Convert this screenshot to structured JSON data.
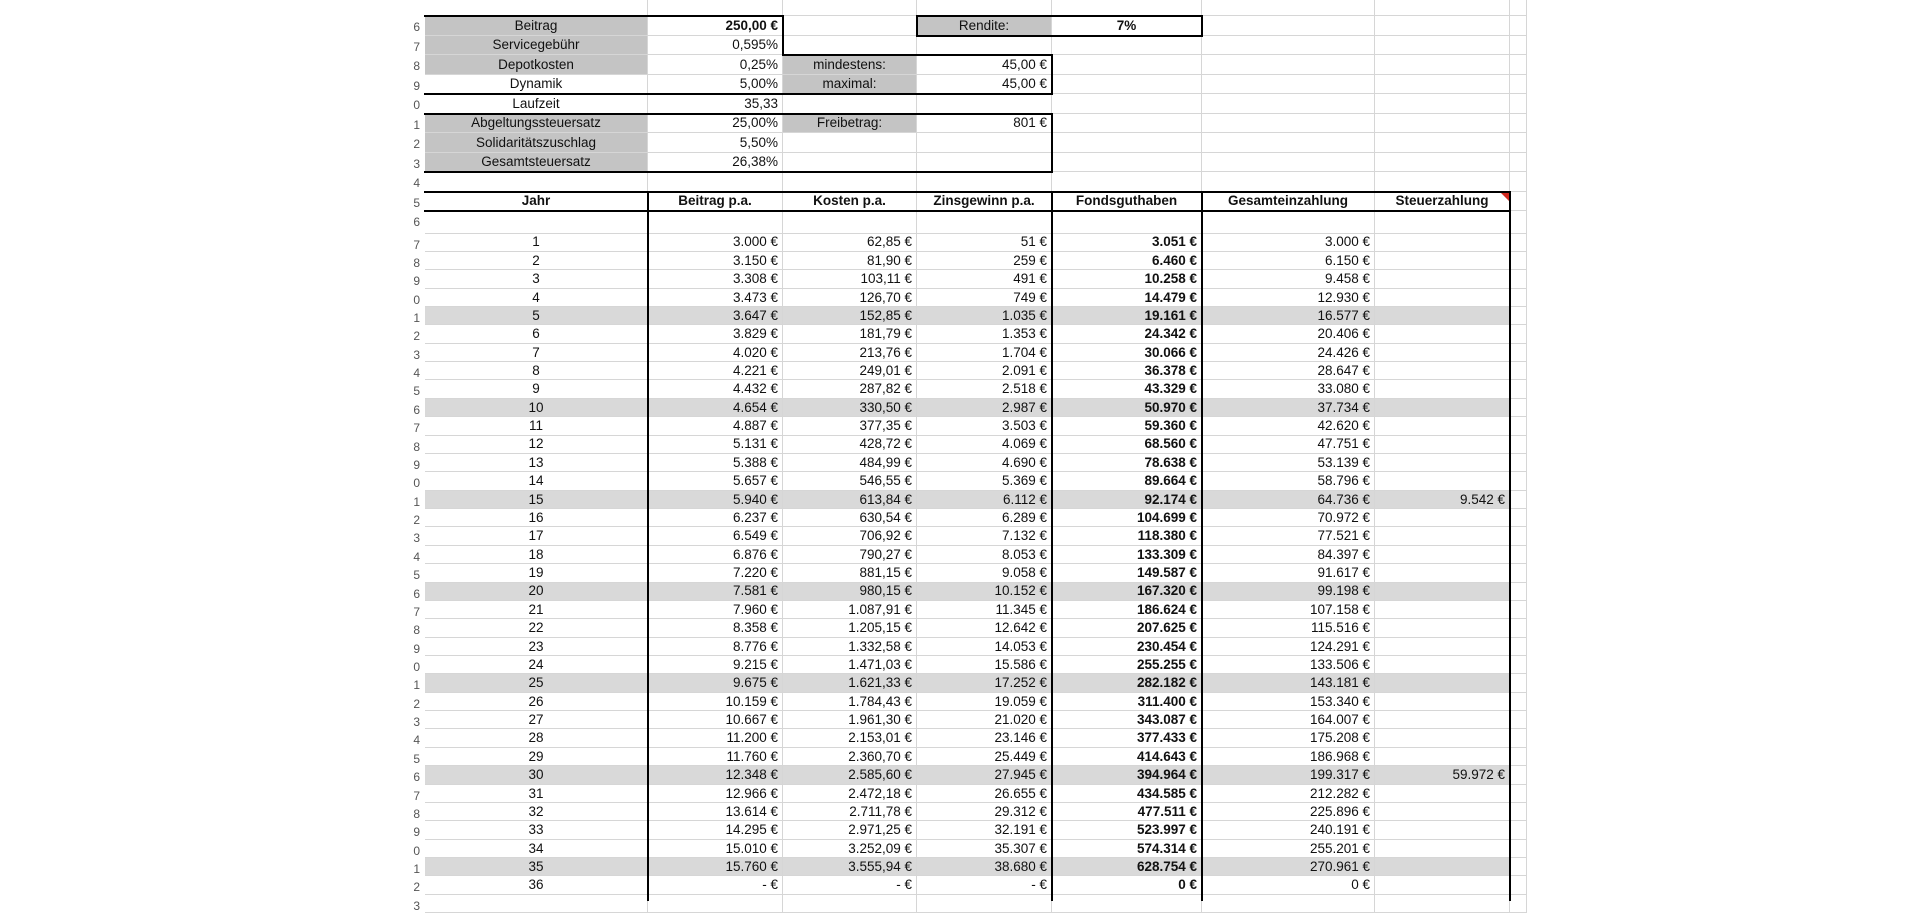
{
  "params": {
    "beitrag": {
      "label": "Beitrag",
      "value": "250,00 €"
    },
    "servicegebuehr": {
      "label": "Servicegebühr",
      "value": "0,595%"
    },
    "depotkosten": {
      "label": "Depotkosten",
      "value": "0,25%"
    },
    "dynamik": {
      "label": "Dynamik",
      "value": "5,00%"
    },
    "laufzeit": {
      "label": "Laufzeit",
      "value": "35,33"
    },
    "abgeltung": {
      "label": "Abgeltungssteuersatz",
      "value": "25,00%"
    },
    "soli": {
      "label": "Solidaritätszuschlag",
      "value": "5,50%"
    },
    "gesamtsteuer": {
      "label": "Gesamtsteuersatz",
      "value": "26,38%"
    },
    "rendite": {
      "label": "Rendite:",
      "value": "7%"
    },
    "mindestens": {
      "label": "mindestens:",
      "value": "45,00 €"
    },
    "maximal": {
      "label": "maximal:",
      "value": "45,00 €"
    },
    "freibetrag": {
      "label": "Freibetrag:",
      "value": "801 €"
    }
  },
  "row_numbers_visible": [
    "",
    "0",
    "1",
    "2",
    "3",
    "4",
    "5",
    "6",
    "7"
  ],
  "headers": [
    "Jahr",
    "Beitrag p.a.",
    "Kosten p.a.",
    "Zinsgewinn p.a.",
    "Fondsguthaben",
    "Gesamteinzahlung",
    "Steuerzahlung"
  ],
  "rows": [
    [
      "1",
      "3.000 €",
      "62,85 €",
      "51 €",
      "3.051 €",
      "3.000 €",
      ""
    ],
    [
      "2",
      "3.150 €",
      "81,90 €",
      "259 €",
      "6.460 €",
      "6.150 €",
      ""
    ],
    [
      "3",
      "3.308 €",
      "103,11 €",
      "491 €",
      "10.258 €",
      "9.458 €",
      ""
    ],
    [
      "4",
      "3.473 €",
      "126,70 €",
      "749 €",
      "14.479 €",
      "12.930 €",
      ""
    ],
    [
      "5",
      "3.647 €",
      "152,85 €",
      "1.035 €",
      "19.161 €",
      "16.577 €",
      ""
    ],
    [
      "6",
      "3.829 €",
      "181,79 €",
      "1.353 €",
      "24.342 €",
      "20.406 €",
      ""
    ],
    [
      "7",
      "4.020 €",
      "213,76 €",
      "1.704 €",
      "30.066 €",
      "24.426 €",
      ""
    ],
    [
      "8",
      "4.221 €",
      "249,01 €",
      "2.091 €",
      "36.378 €",
      "28.647 €",
      ""
    ],
    [
      "9",
      "4.432 €",
      "287,82 €",
      "2.518 €",
      "43.329 €",
      "33.080 €",
      ""
    ],
    [
      "10",
      "4.654 €",
      "330,50 €",
      "2.987 €",
      "50.970 €",
      "37.734 €",
      ""
    ],
    [
      "11",
      "4.887 €",
      "377,35 €",
      "3.503 €",
      "59.360 €",
      "42.620 €",
      ""
    ],
    [
      "12",
      "5.131 €",
      "428,72 €",
      "4.069 €",
      "68.560 €",
      "47.751 €",
      ""
    ],
    [
      "13",
      "5.388 €",
      "484,99 €",
      "4.690 €",
      "78.638 €",
      "53.139 €",
      ""
    ],
    [
      "14",
      "5.657 €",
      "546,55 €",
      "5.369 €",
      "89.664 €",
      "58.796 €",
      ""
    ],
    [
      "15",
      "5.940 €",
      "613,84 €",
      "6.112 €",
      "92.174 €",
      "64.736 €",
      "9.542 €"
    ],
    [
      "16",
      "6.237 €",
      "630,54 €",
      "6.289 €",
      "104.699 €",
      "70.972 €",
      ""
    ],
    [
      "17",
      "6.549 €",
      "706,92 €",
      "7.132 €",
      "118.380 €",
      "77.521 €",
      ""
    ],
    [
      "18",
      "6.876 €",
      "790,27 €",
      "8.053 €",
      "133.309 €",
      "84.397 €",
      ""
    ],
    [
      "19",
      "7.220 €",
      "881,15 €",
      "9.058 €",
      "149.587 €",
      "91.617 €",
      ""
    ],
    [
      "20",
      "7.581 €",
      "980,15 €",
      "10.152 €",
      "167.320 €",
      "99.198 €",
      ""
    ],
    [
      "21",
      "7.960 €",
      "1.087,91 €",
      "11.345 €",
      "186.624 €",
      "107.158 €",
      ""
    ],
    [
      "22",
      "8.358 €",
      "1.205,15 €",
      "12.642 €",
      "207.625 €",
      "115.516 €",
      ""
    ],
    [
      "23",
      "8.776 €",
      "1.332,58 €",
      "14.053 €",
      "230.454 €",
      "124.291 €",
      ""
    ],
    [
      "24",
      "9.215 €",
      "1.471,03 €",
      "15.586 €",
      "255.255 €",
      "133.506 €",
      ""
    ],
    [
      "25",
      "9.675 €",
      "1.621,33 €",
      "17.252 €",
      "282.182 €",
      "143.181 €",
      ""
    ],
    [
      "26",
      "10.159 €",
      "1.784,43 €",
      "19.059 €",
      "311.400 €",
      "153.340 €",
      ""
    ],
    [
      "27",
      "10.667 €",
      "1.961,30 €",
      "21.020 €",
      "343.087 €",
      "164.007 €",
      ""
    ],
    [
      "28",
      "11.200 €",
      "2.153,01 €",
      "23.146 €",
      "377.433 €",
      "175.208 €",
      ""
    ],
    [
      "29",
      "11.760 €",
      "2.360,70 €",
      "25.449 €",
      "414.643 €",
      "186.968 €",
      ""
    ],
    [
      "30",
      "12.348 €",
      "2.585,60 €",
      "27.945 €",
      "394.964 €",
      "199.317 €",
      "59.972 €"
    ],
    [
      "31",
      "12.966 €",
      "2.472,18 €",
      "26.655 €",
      "434.585 €",
      "212.282 €",
      ""
    ],
    [
      "32",
      "13.614 €",
      "2.711,78 €",
      "29.312 €",
      "477.511 €",
      "225.896 €",
      ""
    ],
    [
      "33",
      "14.295 €",
      "2.971,25 €",
      "32.191 €",
      "523.997 €",
      "240.191 €",
      ""
    ],
    [
      "34",
      "15.010 €",
      "3.252,09 €",
      "35.307 €",
      "574.314 €",
      "255.201 €",
      ""
    ],
    [
      "35",
      "15.760 €",
      "3.555,94 €",
      "38.680 €",
      "628.754 €",
      "270.961 €",
      ""
    ],
    [
      "36",
      "- €",
      "-   €",
      "- €",
      "0 €",
      "0 €",
      ""
    ]
  ],
  "colors": {
    "label_fill": "#c4c4c4",
    "band_fill": "#d9d9d9",
    "grid": "#d6d6d6",
    "comment_marker": "#d0281e"
  }
}
